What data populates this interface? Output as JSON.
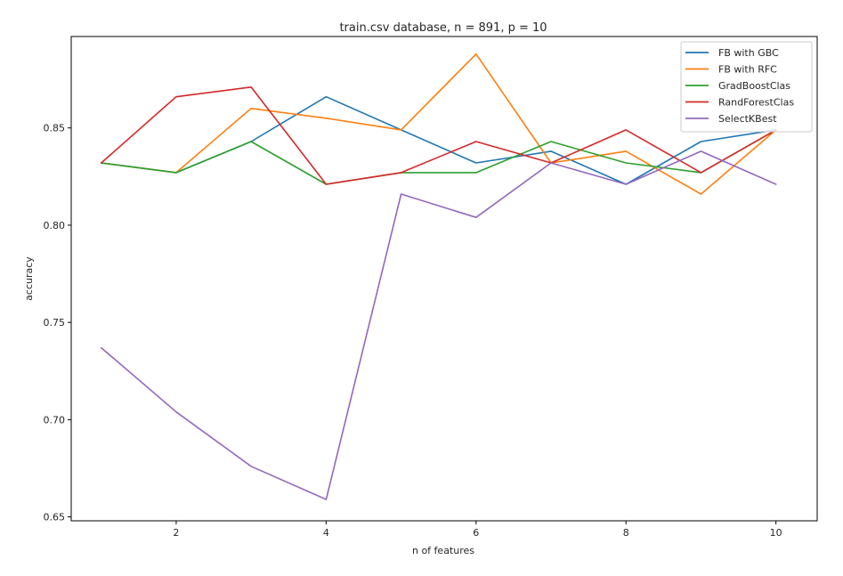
{
  "chart_data": {
    "type": "line",
    "title": "train.csv database, n = 891, p = 10",
    "xlabel": "n of features",
    "ylabel": "accuracy",
    "xlim": [
      0.6,
      10.55
    ],
    "ylim": [
      0.648,
      0.897
    ],
    "xticks": [
      2,
      4,
      6,
      8,
      10
    ],
    "yticks": [
      0.65,
      0.7,
      0.75,
      0.8,
      0.85
    ],
    "ytick_labels": [
      "0.65",
      "0.70",
      "0.75",
      "0.80",
      "0.85"
    ],
    "grid": false,
    "legend_position": "top-right",
    "x": [
      1,
      2,
      3,
      4,
      5,
      6,
      7,
      8,
      9,
      10
    ],
    "series": [
      {
        "name": "FB with GBC",
        "color": "#1f77b4",
        "values": [
          0.832,
          0.827,
          0.843,
          0.866,
          0.849,
          0.832,
          0.838,
          0.821,
          0.843,
          0.849
        ]
      },
      {
        "name": "FB with RFC",
        "color": "#ff7f0e",
        "values": [
          0.832,
          0.827,
          0.86,
          0.855,
          0.849,
          0.888,
          0.832,
          0.838,
          0.816,
          0.849
        ]
      },
      {
        "name": "GradBoostClas",
        "color": "#2ca02c",
        "values": [
          0.832,
          0.827,
          0.843,
          0.821,
          0.827,
          0.827,
          0.843,
          0.832,
          0.827,
          0.849
        ]
      },
      {
        "name": "RandForestClas",
        "color": "#d62728",
        "values": [
          0.832,
          0.866,
          0.871,
          0.821,
          0.827,
          0.843,
          0.832,
          0.849,
          0.827,
          0.849
        ]
      },
      {
        "name": "SelectKBest",
        "color": "#9467bd",
        "values": [
          0.737,
          0.704,
          0.676,
          0.659,
          0.816,
          0.804,
          0.832,
          0.821,
          0.838,
          0.821
        ]
      }
    ]
  }
}
